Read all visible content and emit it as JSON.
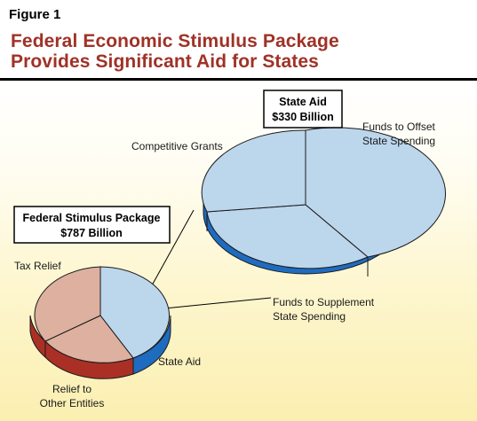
{
  "figure_label": "Figure 1",
  "title_lines": [
    "Federal Economic Stimulus Package",
    "Provides Significant Aid for States"
  ],
  "colors": {
    "title": "#a03227",
    "state_aid_top": "#bcd6ec",
    "state_aid_side": "#1e6cc0",
    "tax_relief_top": "#ddb0a0",
    "relief_other_side": "#aa3025",
    "background_bottom": "#fbefb0"
  },
  "chart_data": [
    {
      "type": "pie",
      "label_lines": [
        "Federal Stimulus Package",
        "$787 Billion"
      ],
      "slices": [
        {
          "label": "State Aid",
          "value": 330,
          "color": "#bcd6ec"
        },
        {
          "label": "Relief to Other Entities",
          "label_lines": [
            "Relief to",
            "Other Entities"
          ],
          "value": 170,
          "color": "#ddb0a0"
        },
        {
          "label": "Tax Relief",
          "value": 287,
          "color": "#ddb0a0"
        }
      ],
      "style": "3d"
    },
    {
      "type": "pie",
      "label_lines": [
        "State Aid",
        "$330 Billion"
      ],
      "slices": [
        {
          "label": "Funds to Offset State Spending",
          "label_lines": [
            "Funds to Offset",
            "State Spending"
          ],
          "value": 110,
          "color": "#bcd6ec"
        },
        {
          "label": "Funds to Supplement State Spending",
          "label_lines": [
            "Funds to Supplement",
            "State Spending"
          ],
          "value": 110,
          "color": "#bcd6ec"
        },
        {
          "label": "Competitive Grants",
          "value": 110,
          "color": "#bcd6ec"
        }
      ],
      "style": "3d"
    }
  ]
}
